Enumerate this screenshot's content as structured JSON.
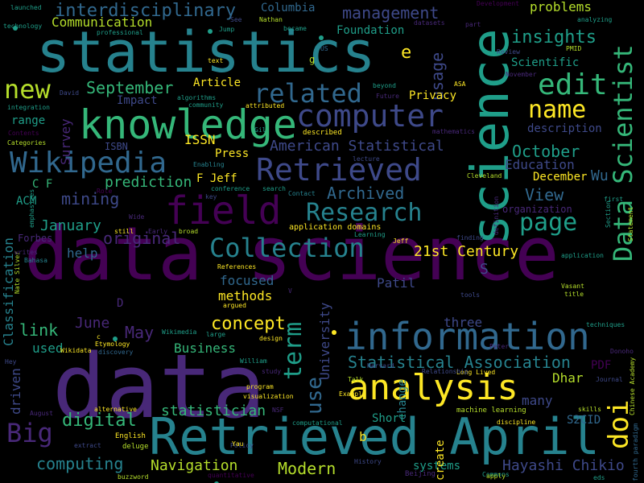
{
  "palette": {
    "dark_purple": "#440154",
    "purple": "#482878",
    "indigo": "#3e4989",
    "blue": "#31688e",
    "teal_blue": "#26828e",
    "teal": "#1f9e89",
    "green": "#35b779",
    "light_green": "#6ece58",
    "lime": "#b5de2b",
    "yellow": "#fde725"
  },
  "words": [
    "data science",
    "data",
    "statistics",
    "science",
    "Retrieved April",
    "knowledge",
    "information",
    "analysis",
    "field",
    "Wikipedia",
    "Retrieved",
    "computer",
    "edit",
    "Data Scientist",
    "related",
    "Collection",
    "Research",
    "page",
    "name",
    "interdisciplinary",
    "management",
    "new",
    "Big",
    "doi",
    "term",
    "use",
    "usage",
    "insights",
    "Statistical Association",
    "American Statistical",
    "concept",
    "original",
    "Communication",
    "September",
    "October",
    "January",
    "December",
    "June",
    "May",
    "digital",
    "computing",
    "mining",
    "prediction",
    "Modern",
    "statistician",
    "Business",
    "21st Century",
    "Hayashi Chikio",
    "Navigation",
    "Patil",
    "Dhar",
    "Archived",
    "View",
    "Wu",
    "link",
    "methods",
    "focused",
    "help",
    "Classification",
    "University",
    "driven",
    "used",
    "Education",
    "Foundation",
    "problems",
    "Scientific",
    "Survey",
    "range",
    "description",
    "organization",
    "Impact",
    "Article",
    "Privacy",
    "ISSN",
    "ISBN",
    "Press",
    "Columbia",
    "F Jeff",
    "C F",
    "ACM",
    "Forbes",
    "S2CID",
    "PDF",
    "three",
    "systems",
    "create",
    "change",
    "many",
    "Short",
    "application domains",
    "visualization",
    "machine learning",
    "Long Lived",
    "Chinese Academy",
    "fourth paradigm",
    "Statement",
    "Harvard",
    "Nate Silver",
    "Wikidata",
    "Etymology",
    "discovery",
    "alternative",
    "English",
    "deluge",
    "buzzword",
    "quantitative",
    "History",
    "Beijing",
    "Commons",
    "apply",
    "discipline",
    "skills",
    "Journal",
    "Donoho",
    "Vasant",
    "title",
    "Peter",
    "techniques",
    "tools",
    "Cleveland",
    "mathematics",
    "lecture",
    "described",
    "Categories",
    "Contents",
    "integration",
    "David",
    "launched",
    "technology",
    "professional",
    "Development",
    "analyzing",
    "PMID",
    "Review",
    "November",
    "datasets",
    "Nathan",
    "became",
    "Jump",
    "See",
    "text",
    "algorithms",
    "community",
    "attributed",
    "Enabling",
    "conference",
    "key",
    "search",
    "Contact",
    "Learning",
    "finding",
    "Jeff",
    "References",
    "argued",
    "still",
    "Early",
    "broad",
    "Wide",
    "writes",
    "Bahasa",
    "emphasizes",
    "Role",
    "Gil",
    "beyond",
    "Future",
    "ASA",
    "part",
    "first",
    "Section",
    "definition",
    "Wikimedia",
    "large",
    "design",
    "William",
    "study",
    "program",
    "NSF",
    "Policy",
    "Yau",
    "computational",
    "Talk",
    "Relationship",
    "Example",
    "Hey",
    "August",
    "extract",
    "eds",
    "application",
    "US",
    "g",
    "b",
    "e",
    "D",
    "S",
    "V",
    "c"
  ]
}
